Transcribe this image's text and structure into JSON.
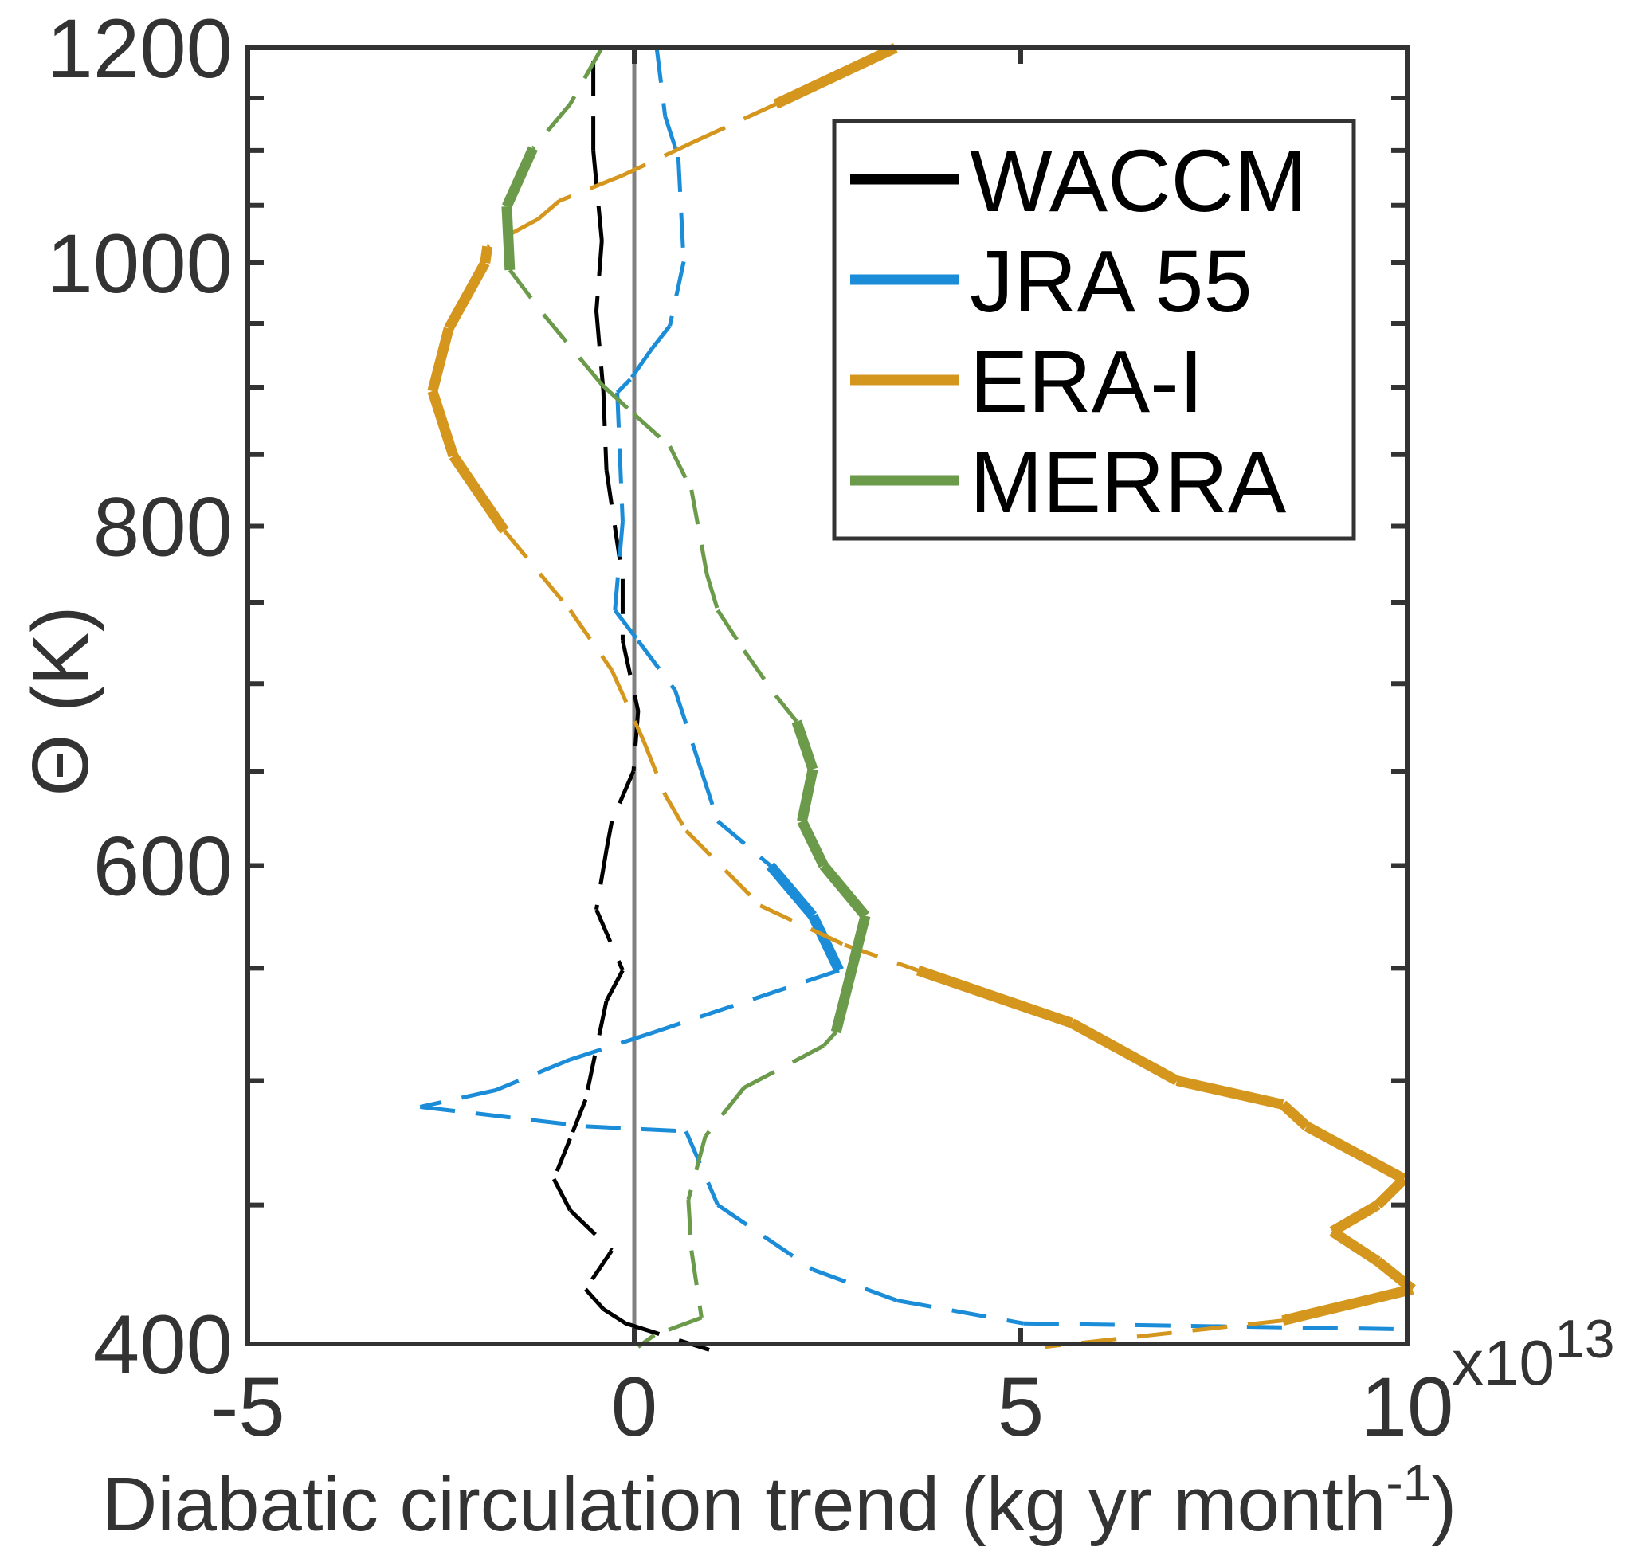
{
  "chart_data": {
    "type": "line",
    "title": "",
    "xlabel": "Diabatic circulation trend (kg yr month",
    "xlabel_sup": "-1",
    "xlabel_close": ")",
    "ylabel": "Θ (K)",
    "x_multiplier": "x10",
    "x_multiplier_exp": "13",
    "xlim": [
      -5,
      10
    ],
    "ylim": [
      400,
      1200
    ],
    "yscale": "log",
    "xticks": [
      "-5",
      "0",
      "5",
      "10"
    ],
    "xtick_values": [
      -5,
      0,
      5,
      10
    ],
    "yticks": [
      "400",
      "600",
      "800",
      "1000",
      "1200"
    ],
    "ytick_values": [
      400,
      600,
      800,
      1000,
      1200
    ],
    "legend_placement": "top-right",
    "zero_line": 0,
    "note": "solid thick segments = significant, dashed thin = not significant; sig flag applies to the segment starting at that point",
    "series": [
      {
        "name": "WACCM",
        "color": "#000000",
        "x": [
          -0.53,
          -0.53,
          -0.42,
          -0.49,
          -0.4,
          -0.36,
          -0.15,
          -0.15,
          0.05,
          -0.01,
          -0.29,
          -0.36,
          -0.49,
          -0.15,
          -0.36,
          -0.63,
          -0.83,
          -1.04,
          -0.83,
          -0.29,
          -0.63,
          -0.4,
          -0.11,
          0.97
        ],
        "y": [
          1187,
          1100,
          1019,
          960,
          897,
          839,
          765,
          726,
          684,
          650,
          623,
          608,
          578,
          549,
          535,
          492,
          476,
          460,
          448,
          433,
          419,
          412,
          407,
          398
        ],
        "sig": [
          0,
          0,
          0,
          0,
          0,
          0,
          0,
          0,
          0,
          0,
          0,
          0,
          0,
          0,
          0,
          0,
          0,
          0,
          0,
          0,
          0,
          0,
          0,
          0
        ]
      },
      {
        "name": "JRA 55",
        "color": "#1a8cd8",
        "x": [
          0.29,
          0.4,
          0.57,
          0.64,
          0.46,
          0.23,
          -0.05,
          -0.22,
          -0.15,
          -0.25,
          0.05,
          0.53,
          0.87,
          1.08,
          1.76,
          2.31,
          2.65,
          0.26,
          -0.83,
          -1.79,
          -2.77,
          -0.63,
          0.67,
          1.08,
          2.31,
          3.4,
          5.04,
          10.0
        ],
        "y": [
          1200,
          1132,
          1094,
          1001,
          948,
          930,
          906,
          896,
          803,
          745,
          726,
          696,
          650,
          623,
          600,
          575,
          549,
          521,
          509,
          496,
          489,
          481,
          479,
          450,
          426,
          415,
          407,
          405
        ],
        "sig": [
          0,
          0,
          0,
          0,
          0,
          0,
          0,
          0,
          0,
          0,
          0,
          0,
          0,
          0,
          1,
          1,
          0,
          0,
          0,
          0,
          0,
          0,
          0,
          0,
          0,
          0,
          0,
          0
        ]
      },
      {
        "name": "ERA-I",
        "color": "#d4961c",
        "x": [
          3.38,
          1.83,
          0.8,
          -0.15,
          -0.97,
          -1.24,
          -1.9,
          -1.93,
          -2.4,
          -2.61,
          -2.34,
          -1.68,
          -0.83,
          -0.29,
          0.12,
          0.4,
          0.67,
          1.63,
          2.72,
          3.67,
          5.66,
          7.02,
          8.39,
          8.7,
          9.96,
          9.62,
          9.03,
          9.62,
          10.07,
          8.39,
          5.31
        ],
        "y": [
          1200,
          1144,
          1109,
          1077,
          1054,
          1038,
          1014,
          1000,
          946,
          897,
          849,
          797,
          745,
          708,
          667,
          637,
          618,
          580,
          561,
          549,
          525,
          500,
          490,
          481,
          460,
          450,
          440,
          429,
          419,
          408,
          399
        ],
        "sig": [
          1,
          0,
          0,
          0,
          0,
          0,
          1,
          1,
          1,
          1,
          1,
          0,
          0,
          0,
          0,
          0,
          0,
          0,
          0,
          1,
          1,
          1,
          1,
          1,
          1,
          1,
          1,
          1,
          1,
          0,
          0
        ]
      },
      {
        "name": "MERRA",
        "color": "#6a9a4a",
        "x": [
          -0.42,
          -0.83,
          -1.31,
          -1.65,
          -1.61,
          -1.17,
          -0.42,
          -0.01,
          0.46,
          0.74,
          0.94,
          1.08,
          1.42,
          1.83,
          2.1,
          2.31,
          2.17,
          2.45,
          2.99,
          2.61,
          2.45,
          1.42,
          0.92,
          0.7,
          0.74,
          0.87,
          0.26,
          0.05
        ],
        "y": [
          1200,
          1144,
          1102,
          1049,
          994,
          957,
          902,
          880,
          856,
          825,
          768,
          745,
          720,
          693,
          678,
          651,
          623,
          600,
          575,
          521,
          515,
          497,
          477,
          452,
          433,
          409,
          403,
          399
        ],
        "sig": [
          0,
          0,
          1,
          1,
          0,
          0,
          0,
          0,
          0,
          0,
          0,
          0,
          0,
          0,
          1,
          1,
          1,
          1,
          1,
          0,
          0,
          0,
          0,
          0,
          0,
          0,
          0,
          0
        ]
      }
    ]
  }
}
